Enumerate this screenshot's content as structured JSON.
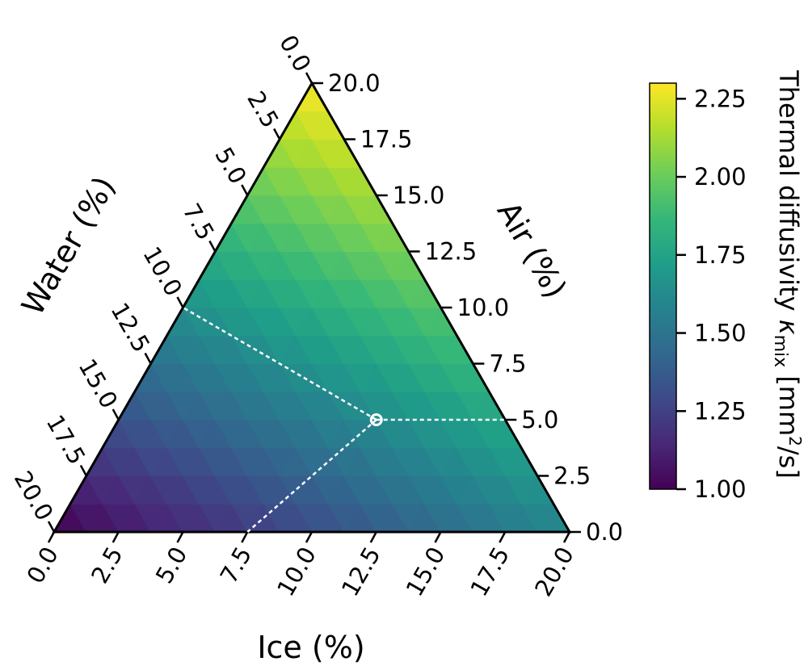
{
  "chart_data": {
    "type": "heatmap",
    "subtype": "ternary",
    "axes": {
      "ice": {
        "label": "Ice (%)",
        "range": [
          0,
          20
        ],
        "ticks": [
          "0.0",
          "2.5",
          "5.0",
          "7.5",
          "10.0",
          "12.5",
          "15.0",
          "17.5",
          "20.0"
        ]
      },
      "air": {
        "label": "Air (%)",
        "range": [
          0,
          20
        ],
        "ticks": [
          "0.0",
          "2.5",
          "5.0",
          "7.5",
          "10.0",
          "12.5",
          "15.0",
          "17.5",
          "20.0"
        ]
      },
      "water": {
        "label": "Water (%)",
        "range": [
          0,
          20
        ],
        "ticks": [
          "0.0",
          "2.5",
          "5.0",
          "7.5",
          "10.0",
          "12.5",
          "15.0",
          "17.5",
          "20.0"
        ]
      }
    },
    "colorbar": {
      "label": "Thermal diffusivity κ_mix [mm²/s]",
      "label_parts": {
        "main": "Thermal diffusivity ",
        "kappa": "κ",
        "sub": "mix",
        "unit_a": " [mm",
        "sup": "2",
        "unit_b": "/s]"
      },
      "range": [
        1.0,
        2.3
      ],
      "ticks": [
        "1.00",
        "1.25",
        "1.50",
        "1.75",
        "2.00",
        "2.25"
      ],
      "colormap": "viridis"
    },
    "field_corner_values": {
      "ice_max": 1.6,
      "air_max": 2.3,
      "water_max": 1.0
    },
    "marker": {
      "ice": 10.0,
      "air": 5.0,
      "water": 5.0
    },
    "grid": false
  }
}
